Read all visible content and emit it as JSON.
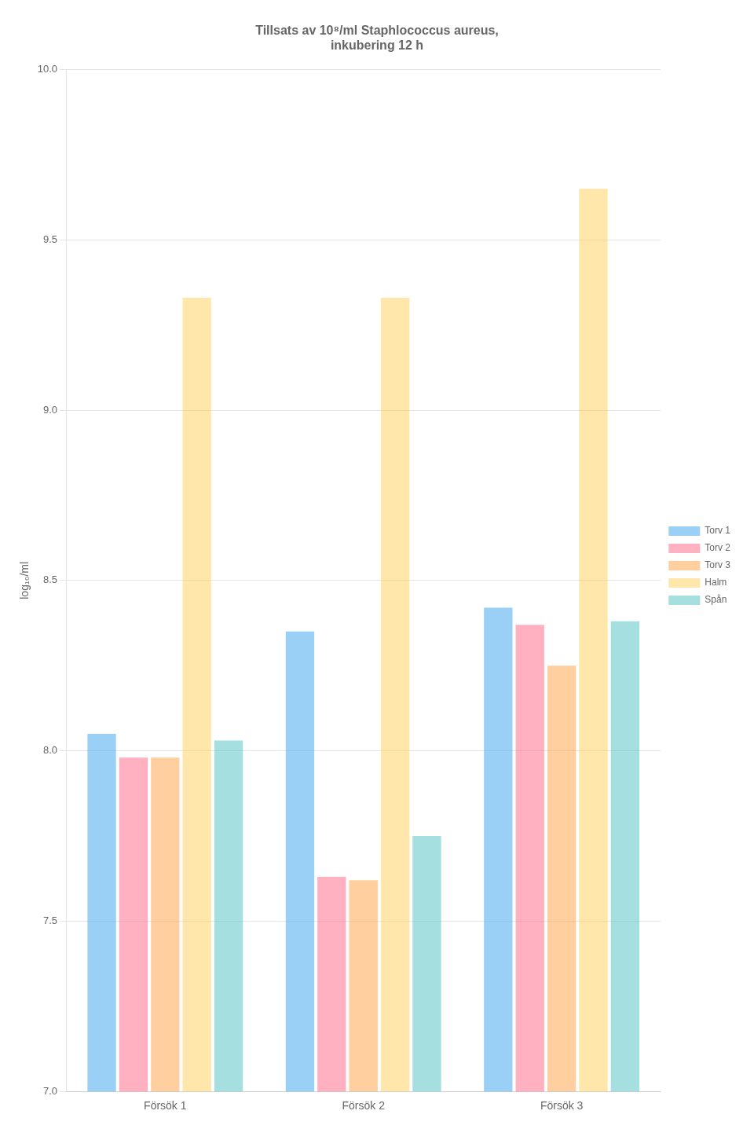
{
  "chart_data": {
    "type": "bar",
    "title": [
      "Tillsats av 10⁸/ml Staphlococcus aureus,",
      "inkubering 12 h"
    ],
    "ylabel": "log₁₀/ml",
    "categories": [
      "Försök 1",
      "Försök 2",
      "Försök 3"
    ],
    "series": [
      {
        "name": "Torv 1",
        "values": [
          8.05,
          8.35,
          8.42
        ]
      },
      {
        "name": "Torv 2",
        "values": [
          7.98,
          7.63,
          8.37
        ]
      },
      {
        "name": "Torv 3",
        "values": [
          7.98,
          7.62,
          8.25
        ]
      },
      {
        "name": "Halm",
        "values": [
          9.33,
          9.33,
          9.65
        ]
      },
      {
        "name": "Spån",
        "values": [
          8.03,
          7.75,
          8.38
        ]
      }
    ],
    "ylim": [
      7.0,
      10.0
    ],
    "yticks": [
      {
        "value": 7,
        "label": "7.0"
      },
      7.5,
      {
        "value": 8,
        "label": "8.0"
      },
      8.5,
      {
        "value": 9,
        "label": "9.0"
      },
      9.5,
      {
        "value": 10,
        "label": "10.0"
      }
    ],
    "grid": true,
    "legend": "right"
  }
}
